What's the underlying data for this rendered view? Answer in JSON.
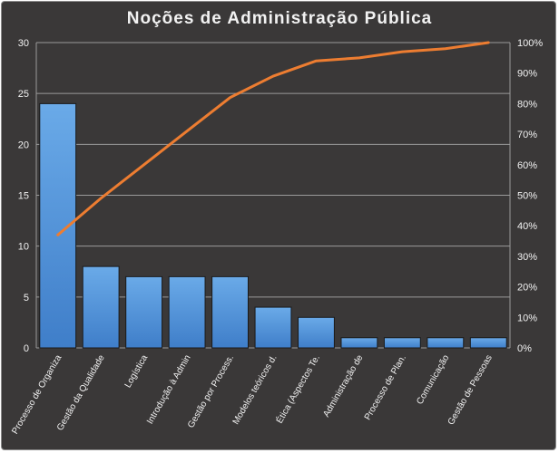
{
  "chart_data": {
    "type": "bar",
    "title": "Noções de Administração Pública",
    "categories": [
      "Processo de Organiza",
      "Gestão da Qualidade",
      "Logística",
      "Introdução à Admin",
      "Gestão por Process.",
      "Modelos teóricos d.",
      "Ética (Aspectos Te.",
      "Administração de",
      "Processo de Plan.",
      "Comunicação",
      "Gestão de Pessoas"
    ],
    "series": [
      {
        "type": "bar",
        "values": [
          24,
          8,
          7,
          7,
          7,
          4,
          3,
          1,
          1,
          1,
          1
        ]
      },
      {
        "type": "line",
        "axis": "right",
        "values": [
          37,
          49,
          60,
          71,
          82,
          89,
          94,
          95,
          97,
          98,
          100
        ]
      }
    ],
    "ylim": [
      0,
      30
    ],
    "yticks": [
      0,
      5,
      10,
      15,
      20,
      25,
      30
    ],
    "y2lim": [
      0,
      100
    ],
    "y2ticks": [
      "0%",
      "10%",
      "20%",
      "30%",
      "40%",
      "50%",
      "60%",
      "70%",
      "80%",
      "90%",
      "100%"
    ],
    "grid": true,
    "legend": "none",
    "colors": {
      "background": "#3a3838",
      "bar": "#4f8fd6",
      "line": "#ed7d31",
      "grid": "#9a9a9a",
      "text": "#f2f2f2"
    }
  }
}
